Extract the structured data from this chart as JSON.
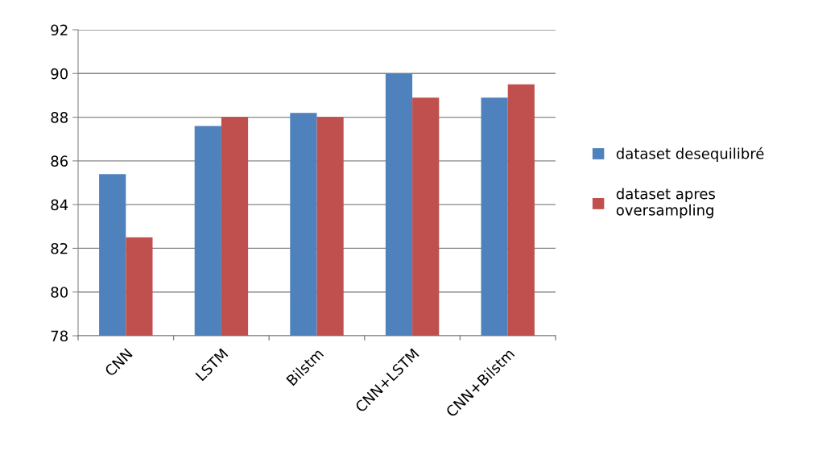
{
  "chart_data": {
    "type": "bar",
    "categories": [
      "CNN",
      "LSTM",
      "Bilstm",
      "CNN+LSTM",
      "CNN+Bilstm"
    ],
    "series": [
      {
        "name": "dataset desequilibré",
        "color": "#4f81bd",
        "values": [
          85.4,
          87.6,
          88.2,
          90.0,
          88.9
        ]
      },
      {
        "name": "dataset apres\noversampling",
        "color": "#c0504d",
        "values": [
          82.5,
          88.0,
          88.0,
          88.9,
          89.5
        ]
      }
    ],
    "ylim": [
      78,
      92
    ],
    "yticks": [
      78,
      80,
      82,
      84,
      86,
      88,
      90,
      92
    ],
    "grid": "y",
    "legend": "right"
  }
}
